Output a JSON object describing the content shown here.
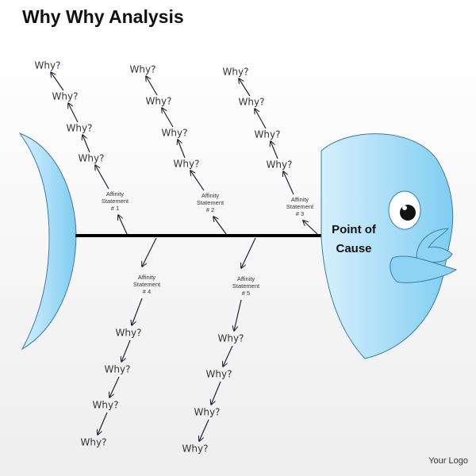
{
  "title": "Why Why Analysis",
  "head_label": [
    "Point of",
    "Cause"
  ],
  "branches": [
    {
      "statement": [
        "Affinity",
        "Statement",
        "# 1"
      ],
      "whys": [
        "Why?",
        "Why?",
        "Why?",
        "Why?"
      ]
    },
    {
      "statement": [
        "Affinity",
        "Statement",
        "# 2"
      ],
      "whys": [
        "Why?",
        "Why?",
        "Why?",
        "Why?"
      ]
    },
    {
      "statement": [
        "Affinity",
        "Statement",
        "# 3"
      ],
      "whys": [
        "Why?",
        "Why?",
        "Why?",
        "Why?"
      ]
    },
    {
      "statement": [
        "Affinity",
        "Statement",
        "# 4"
      ],
      "whys": [
        "Why?",
        "Why?",
        "Why?",
        "Why?"
      ]
    },
    {
      "statement": [
        "Affinity",
        "Statement",
        "# 5"
      ],
      "whys": [
        "Why?",
        "Why?",
        "Why?",
        "Why?"
      ]
    }
  ],
  "logo": "Your Logo"
}
